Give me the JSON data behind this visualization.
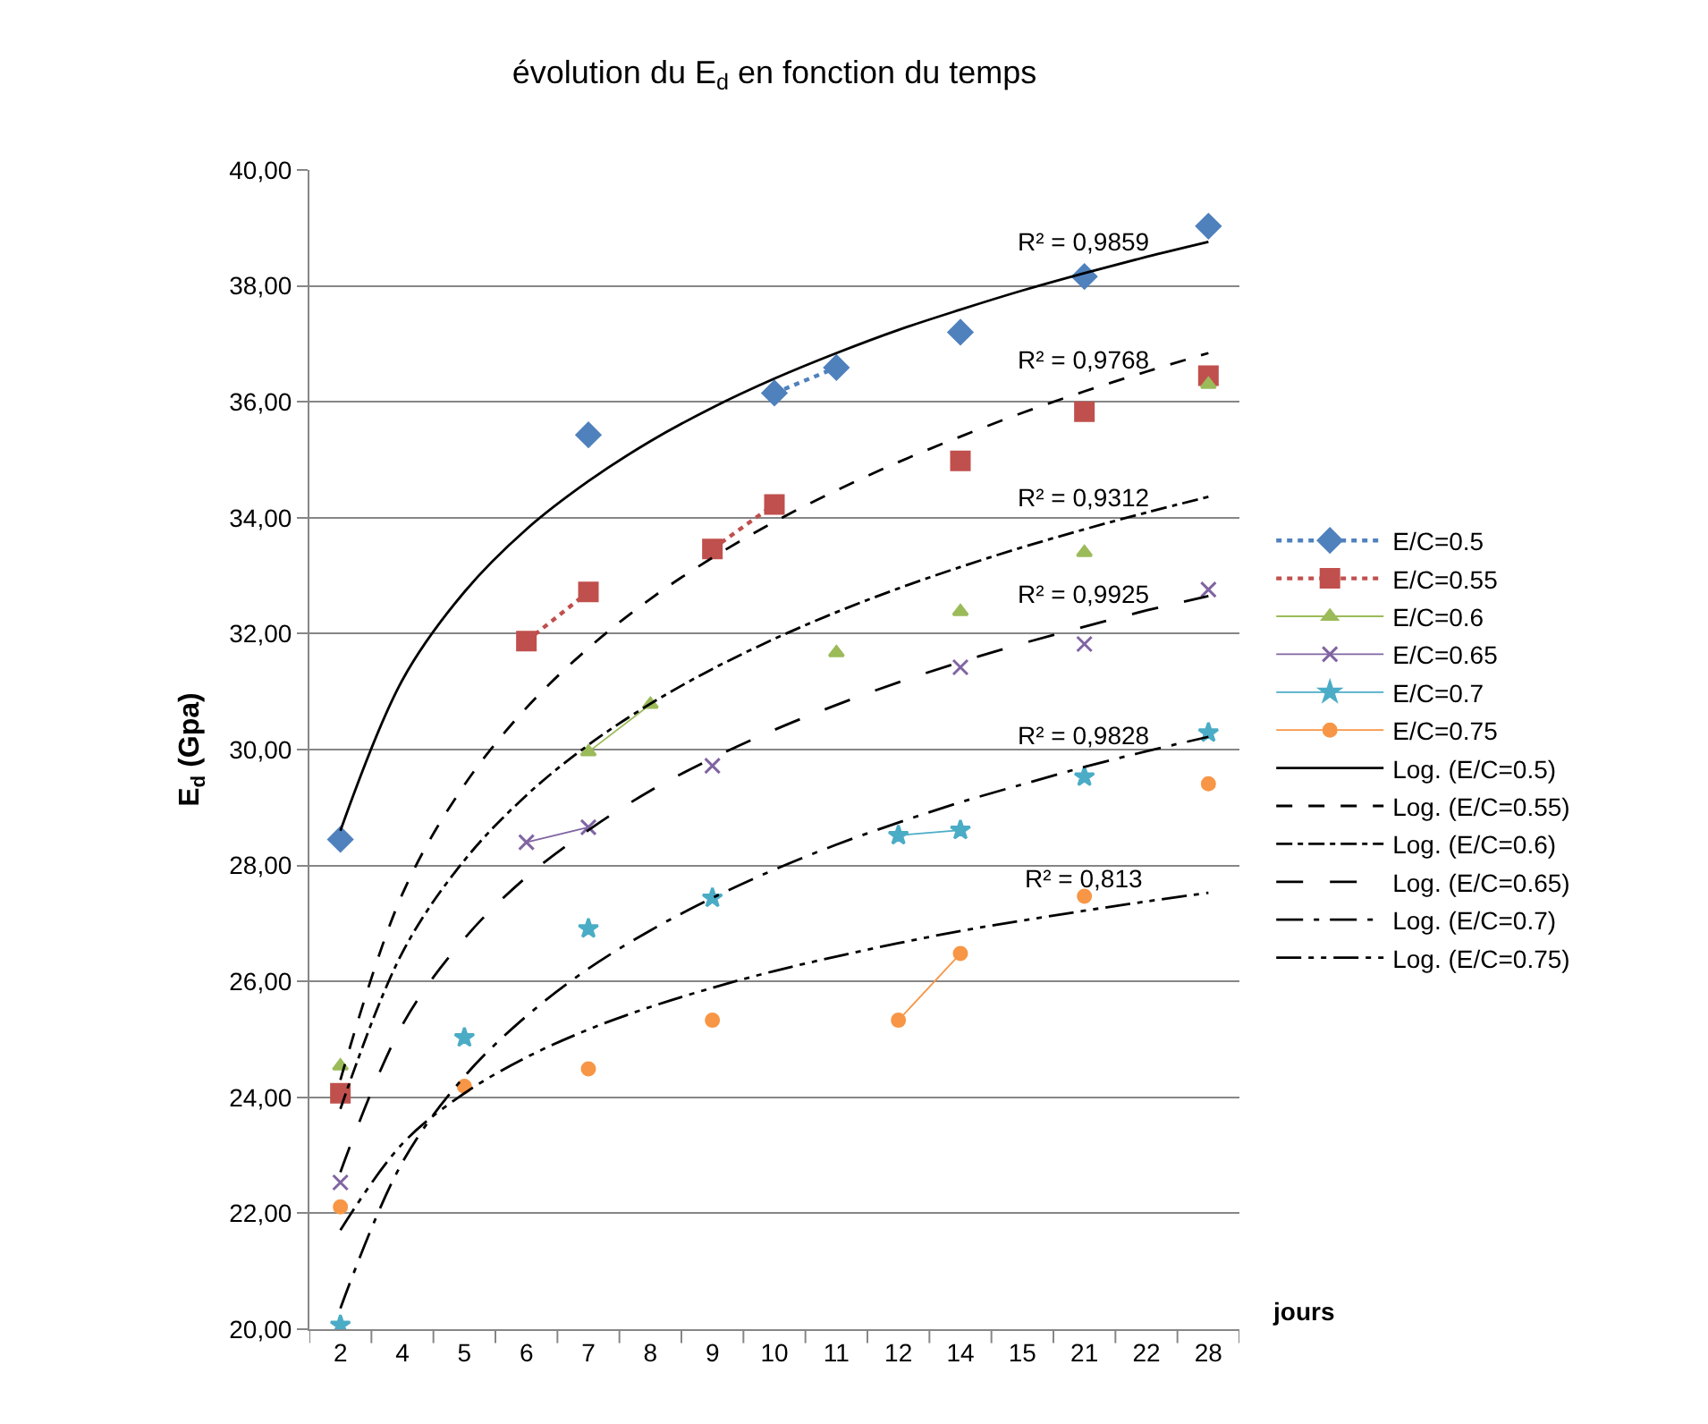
{
  "chart_data": {
    "type": "line",
    "title": "évolution du E$_{d}$ en fonction du temps",
    "ylabel": "E$_{d}$ (Gpa)",
    "xlabel": "jours",
    "categories": [
      "2",
      "4",
      "5",
      "6",
      "7",
      "8",
      "9",
      "10",
      "11",
      "12",
      "14",
      "15",
      "21",
      "22",
      "28"
    ],
    "ylim": [
      20,
      40
    ],
    "yticks": [
      {
        "value": 20,
        "label": "20,00"
      },
      {
        "value": 22,
        "label": "22,00"
      },
      {
        "value": 24,
        "label": "24,00"
      },
      {
        "value": 26,
        "label": "26,00"
      },
      {
        "value": 28,
        "label": "28,00"
      },
      {
        "value": 30,
        "label": "30,00"
      },
      {
        "value": 32,
        "label": "32,00"
      },
      {
        "value": 34,
        "label": "34,00"
      },
      {
        "value": 36,
        "label": "36,00"
      },
      {
        "value": 38,
        "label": "38,00"
      },
      {
        "value": 40,
        "label": "40,00"
      }
    ],
    "grid": "y",
    "legend": "right",
    "series": [
      {
        "name": "E/C=0.5",
        "color": "#4f81bd",
        "marker": "diamond",
        "line_style": "dotted",
        "values": [
          28.45,
          null,
          null,
          null,
          35.43,
          null,
          null,
          36.15,
          36.59,
          null,
          37.2,
          null,
          38.16,
          null,
          39.03
        ]
      },
      {
        "name": "E/C=0.55",
        "color": "#c0504d",
        "marker": "square",
        "line_style": "dotted",
        "values": [
          24.07,
          null,
          null,
          31.87,
          32.72,
          null,
          33.46,
          34.23,
          null,
          null,
          34.98,
          null,
          35.83,
          null,
          36.45
        ]
      },
      {
        "name": "E/C=0.6",
        "color": "#9bbb59",
        "marker": "triangle",
        "line_style": "solid",
        "values": [
          24.54,
          null,
          null,
          null,
          29.96,
          30.78,
          null,
          null,
          31.67,
          null,
          32.38,
          null,
          33.4,
          null,
          36.3
        ]
      },
      {
        "name": "E/C=0.65",
        "color": "#8064a2",
        "marker": "cross",
        "line_style": "solid",
        "values": [
          22.53,
          null,
          null,
          28.4,
          28.66,
          null,
          29.72,
          null,
          null,
          null,
          31.42,
          null,
          31.82,
          null,
          32.76
        ]
      },
      {
        "name": "E/C=0.7",
        "color": "#4bacc6",
        "marker": "star",
        "line_style": "solid",
        "values": [
          20.07,
          null,
          25.03,
          null,
          26.91,
          null,
          27.44,
          null,
          null,
          28.52,
          28.61,
          null,
          29.53,
          null,
          30.29
        ]
      },
      {
        "name": "E/C=0.75",
        "color": "#f79646",
        "marker": "circle",
        "line_style": "solid",
        "values": [
          22.11,
          null,
          24.19,
          null,
          24.49,
          null,
          25.33,
          null,
          null,
          25.33,
          26.48,
          null,
          27.47,
          null,
          29.41
        ]
      },
      {
        "name": "Log. (E/C=0.5)",
        "color": "#000000",
        "marker": "none",
        "line_style": "solid",
        "values": [
          28.6,
          31.2,
          32.72,
          33.8,
          34.63,
          35.32,
          35.9,
          36.4,
          36.84,
          37.24,
          37.59,
          37.92,
          38.22,
          38.5,
          38.76
        ]
      },
      {
        "name": "Log. (E/C=0.55)",
        "color": "#000000",
        "marker": "none",
        "line_style": "dashed",
        "values": [
          24.3,
          27.51,
          29.39,
          30.72,
          31.75,
          32.6,
          33.31,
          33.93,
          34.47,
          34.96,
          35.4,
          35.81,
          36.18,
          36.52,
          36.84
        ]
      },
      {
        "name": "Log. (E/C=0.6)",
        "color": "#000000",
        "marker": "none",
        "line_style": "dashdot",
        "values": [
          23.8,
          26.5,
          28.09,
          29.21,
          30.08,
          30.79,
          31.39,
          31.91,
          32.37,
          32.78,
          33.15,
          33.49,
          33.8,
          34.09,
          34.36
        ]
      },
      {
        "name": "Log. (E/C=0.65)",
        "color": "#000000",
        "marker": "none",
        "line_style": "longdash",
        "values": [
          22.71,
          25.25,
          26.74,
          27.8,
          28.61,
          29.29,
          29.85,
          30.34,
          30.77,
          31.16,
          31.51,
          31.83,
          32.12,
          32.4,
          32.65
        ]
      },
      {
        "name": "Log. (E/C=0.7)",
        "color": "#000000",
        "marker": "none",
        "line_style": "longdashdot",
        "values": [
          20.36,
          22.88,
          24.36,
          25.4,
          26.22,
          26.88,
          27.44,
          27.93,
          28.36,
          28.74,
          29.09,
          29.4,
          29.7,
          29.97,
          30.22
        ]
      },
      {
        "name": "Log. (E/C=0.75)",
        "color": "#000000",
        "marker": "none",
        "line_style": "longdashdotdot",
        "values": [
          21.71,
          23.2,
          24.07,
          24.69,
          25.17,
          25.56,
          25.89,
          26.18,
          26.43,
          26.66,
          26.87,
          27.05,
          27.22,
          27.38,
          27.53
        ]
      }
    ],
    "annotations": [
      "R² = 0,9859",
      "R² = 0,9768",
      "R² = 0,9312",
      "R² = 0,9925",
      "R² = 0,9828",
      "R² = 0,813"
    ]
  }
}
